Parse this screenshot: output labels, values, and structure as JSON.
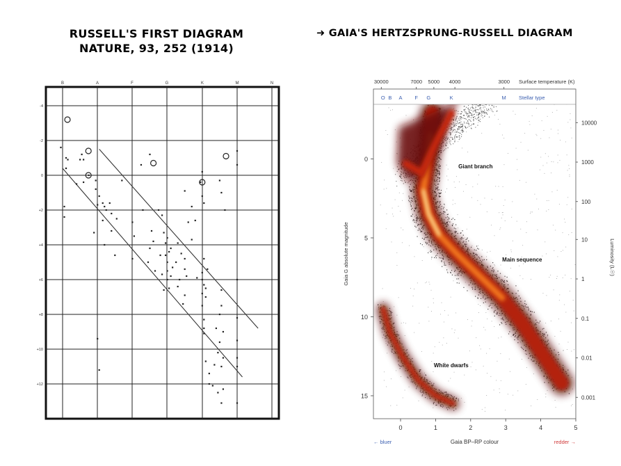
{
  "russell": {
    "title_line1": "RUSSELL'S FIRST DIAGRAM",
    "title_line2": "NATURE, 93, 252 (1914)"
  },
  "gaia": {
    "title": "➜ GAIA'S HERTZSPRUNG-RUSSELL DIAGRAM"
  },
  "chart_data": [
    {
      "type": "scatter",
      "title": "RUSSELL'S FIRST DIAGRAM NATURE, 93, 252 (1914)",
      "x_categories": [
        "B",
        "A",
        "F",
        "G",
        "K",
        "M",
        "N"
      ],
      "y_ticks": [
        "-4",
        "-2",
        "0",
        "+2",
        "+4",
        "+6",
        "+8",
        "+10",
        "+12"
      ],
      "y_inverted": true,
      "grid": true,
      "circles": [
        {
          "x": "B",
          "y": -3.2
        },
        {
          "x": "A",
          "y": -1.4
        },
        {
          "x": "A",
          "y": 0.0
        },
        {
          "x": "G",
          "y": -0.7
        },
        {
          "x": "K",
          "y": 0.4
        },
        {
          "x": "M",
          "y": -1.1
        }
      ],
      "reference_lines": [
        {
          "from": {
            "x": 0.0,
            "y": -0.4
          },
          "to": {
            "x": 5.15,
            "y": 11.6
          }
        },
        {
          "from": {
            "x": 1.05,
            "y": -1.5
          },
          "to": {
            "x": 5.6,
            "y": 8.8
          }
        }
      ],
      "stars": [
        [
          -0.05,
          -1.6
        ],
        [
          0.1,
          -1.0
        ],
        [
          0.15,
          -0.9
        ],
        [
          0.5,
          -0.9
        ],
        [
          0.55,
          -1.2
        ],
        [
          0.6,
          -0.9
        ],
        [
          0.05,
          1.8
        ],
        [
          0.75,
          0.0
        ],
        [
          0.95,
          0.8
        ],
        [
          1.0,
          1.7
        ],
        [
          1.05,
          1.2
        ],
        [
          1.2,
          1.8
        ],
        [
          1.25,
          2.0
        ],
        [
          1.35,
          1.6
        ],
        [
          1.55,
          2.5
        ],
        [
          1.2,
          4.0
        ],
        [
          0.9,
          3.3
        ],
        [
          1.4,
          3.2
        ],
        [
          1.5,
          4.6
        ],
        [
          2.0,
          2.7
        ],
        [
          2.05,
          3.5
        ],
        [
          2.0,
          4.8
        ],
        [
          2.3,
          2.0
        ],
        [
          2.5,
          -1.2
        ],
        [
          2.25,
          -0.6
        ],
        [
          2.45,
          5.0
        ],
        [
          2.5,
          4.2
        ],
        [
          2.55,
          3.2
        ],
        [
          2.65,
          5.5
        ],
        [
          2.75,
          2.0
        ],
        [
          2.85,
          2.3
        ],
        [
          2.9,
          3.3
        ],
        [
          2.95,
          3.9
        ],
        [
          2.95,
          4.6
        ],
        [
          3.0,
          5.0
        ],
        [
          3.0,
          5.5
        ],
        [
          3.0,
          6.0
        ],
        [
          3.05,
          6.5
        ],
        [
          3.05,
          4.4
        ],
        [
          3.0,
          3.6
        ],
        [
          2.9,
          6.6
        ],
        [
          2.85,
          5.7
        ],
        [
          2.8,
          4.6
        ],
        [
          3.1,
          4.2
        ],
        [
          3.1,
          5.8
        ],
        [
          3.25,
          5.0
        ],
        [
          3.3,
          3.9
        ],
        [
          3.35,
          6.0
        ],
        [
          3.4,
          4.5
        ],
        [
          3.5,
          5.4
        ],
        [
          3.5,
          6.9
        ],
        [
          3.45,
          7.4
        ],
        [
          3.5,
          4.8
        ],
        [
          3.55,
          5.8
        ],
        [
          3.5,
          0.9
        ],
        [
          3.7,
          1.8
        ],
        [
          3.95,
          0.4
        ],
        [
          4.0,
          1.2
        ],
        [
          4.05,
          1.6
        ],
        [
          4.0,
          -0.2
        ],
        [
          4.0,
          6.0
        ],
        [
          4.0,
          6.8
        ],
        [
          4.05,
          6.3
        ],
        [
          4.0,
          7.5
        ],
        [
          4.05,
          8.3
        ],
        [
          4.05,
          8.8
        ],
        [
          4.1,
          7.0
        ],
        [
          4.05,
          9.1
        ],
        [
          4.0,
          5.6
        ],
        [
          4.1,
          6.5
        ],
        [
          4.05,
          4.8
        ],
        [
          4.1,
          10.7
        ],
        [
          4.2,
          11.4
        ],
        [
          4.2,
          12.0
        ],
        [
          4.35,
          10.9
        ],
        [
          4.3,
          12.1
        ],
        [
          4.45,
          12.5
        ],
        [
          4.55,
          11.0
        ],
        [
          4.45,
          10.2
        ],
        [
          4.5,
          9.6
        ],
        [
          4.5,
          8.0
        ],
        [
          4.55,
          6.6
        ],
        [
          4.55,
          7.5
        ],
        [
          4.6,
          12.3
        ],
        [
          4.55,
          13.1
        ],
        [
          4.4,
          8.8
        ],
        [
          4.5,
          0.3
        ],
        [
          4.55,
          1.0
        ],
        [
          4.65,
          2.0
        ],
        [
          4.6,
          9.0
        ],
        [
          4.6,
          10.5
        ],
        [
          5.0,
          6.0
        ],
        [
          5.0,
          8.2
        ],
        [
          5.0,
          9.5
        ],
        [
          5.0,
          10.5
        ],
        [
          5.0,
          11.0
        ],
        [
          5.0,
          -1.4
        ],
        [
          5.0,
          -0.6
        ],
        [
          5.0,
          13.1
        ],
        [
          3.8,
          2.6
        ],
        [
          3.7,
          3.7
        ],
        [
          4.15,
          5.4
        ],
        [
          1.7,
          0.3
        ],
        [
          0.1,
          -0.4
        ],
        [
          0.4,
          0.5
        ],
        [
          0.95,
          0.3
        ],
        [
          1.15,
          1.6
        ],
        [
          1.4,
          2.2
        ],
        [
          1.15,
          2.6
        ],
        [
          2.6,
          3.8
        ],
        [
          3.3,
          6.4
        ],
        [
          3.6,
          2.7
        ],
        [
          1.0,
          9.4
        ],
        [
          1.05,
          11.2
        ],
        [
          0.05,
          2.4
        ],
        [
          0.6,
          0.4
        ],
        [
          3.85,
          5.9
        ],
        [
          3.15,
          5.3
        ]
      ]
    },
    {
      "type": "scatter",
      "title": "➜ GAIA'S HERTZSPRUNG-RUSSELL DIAGRAM",
      "xlabel": "Gaia BP–RP colour",
      "ylabel": "Gaia G absolute magnitude",
      "xlim": [
        -0.6,
        5.0
      ],
      "ylim": [
        16.5,
        -4.5
      ],
      "x_ticks": [
        0,
        1,
        2,
        3,
        4,
        5
      ],
      "y_ticks": [
        0,
        5,
        10,
        15
      ],
      "x_direction_labels": {
        "left": "← bluer",
        "right": "redder →"
      },
      "top_axis_label": "Surface temperature (K)",
      "top_ticks": [
        {
          "x": -0.55,
          "label": "30000"
        },
        {
          "x": 0.45,
          "label": "7000"
        },
        {
          "x": 0.95,
          "label": "5000"
        },
        {
          "x": 1.55,
          "label": "4000"
        },
        {
          "x": 2.95,
          "label": "3000"
        }
      ],
      "stellar_type_label": "Stellar type",
      "stellar_types": [
        {
          "x": -0.5,
          "label": "O"
        },
        {
          "x": -0.3,
          "label": "B"
        },
        {
          "x": 0.0,
          "label": "A"
        },
        {
          "x": 0.45,
          "label": "F"
        },
        {
          "x": 0.8,
          "label": "G"
        },
        {
          "x": 1.45,
          "label": "K"
        },
        {
          "x": 2.95,
          "label": "M"
        }
      ],
      "right_axis_label": "Luminosity (L☉)",
      "luminosity_ticks": [
        {
          "y": -2.3,
          "label": "10000"
        },
        {
          "y": 0.2,
          "label": "1000"
        },
        {
          "y": 2.7,
          "label": "100"
        },
        {
          "y": 5.1,
          "label": "10"
        },
        {
          "y": 7.6,
          "label": "1"
        },
        {
          "y": 10.1,
          "label": "0.1"
        },
        {
          "y": 12.6,
          "label": "0.01"
        },
        {
          "y": 15.1,
          "label": "0.001"
        }
      ],
      "annotations": [
        {
          "text": "Giant branch",
          "x": 1.65,
          "y": 0.6
        },
        {
          "text": "Main sequence",
          "x": 2.9,
          "y": 6.5
        },
        {
          "text": "White dwarfs",
          "x": 0.95,
          "y": 13.2
        }
      ],
      "density_regions": {
        "giant_branch": [
          [
            -0.05,
            -2.0
          ],
          [
            1.4,
            -3.4
          ],
          [
            1.8,
            -5.0
          ],
          [
            1.2,
            -1.0
          ],
          [
            0.6,
            1.0
          ],
          [
            0.2,
            1.5
          ],
          [
            -0.1,
            0.3
          ]
        ],
        "main_sequence_path": [
          [
            0.9,
            -2.9
          ],
          [
            0.85,
            -1.5
          ],
          [
            0.75,
            0.5
          ],
          [
            0.65,
            2.0
          ],
          [
            0.8,
            3.5
          ],
          [
            1.1,
            4.8
          ],
          [
            1.6,
            6.0
          ],
          [
            2.2,
            7.3
          ],
          [
            2.9,
            8.8
          ],
          [
            3.5,
            10.5
          ],
          [
            4.0,
            12.2
          ],
          [
            4.6,
            14.2
          ]
        ],
        "white_dwarf_path": [
          [
            -0.5,
            9.5
          ],
          [
            -0.3,
            11.0
          ],
          [
            0.05,
            12.5
          ],
          [
            0.5,
            14.0
          ],
          [
            1.0,
            15.0
          ],
          [
            1.5,
            15.5
          ]
        ]
      }
    }
  ]
}
